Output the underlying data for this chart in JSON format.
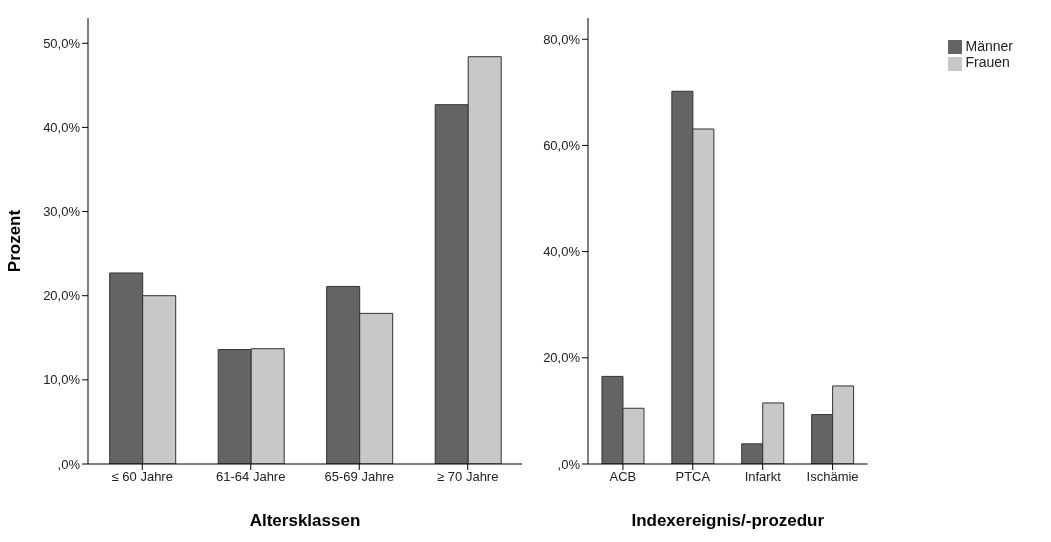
{
  "chart_data": [
    {
      "type": "bar",
      "xlabel": "Altersklassen",
      "ylabel": "Prozent",
      "categories": [
        "≤ 60 Jahre",
        "61-64 Jahre",
        "65-69 Jahre",
        "≥ 70 Jahre"
      ],
      "series": [
        {
          "color": "#646464",
          "values": [
            22.7,
            13.6,
            21.1,
            42.7
          ]
        },
        {
          "color": "#c8c8c8",
          "values": [
            20.0,
            13.7,
            17.9,
            48.4
          ]
        }
      ],
      "ylim": [
        0,
        53
      ],
      "yticks": [
        {
          "value": 0,
          "label": ",0%"
        },
        {
          "value": 10,
          "label": "10,0%"
        },
        {
          "value": 20,
          "label": "20,0%"
        },
        {
          "value": 30,
          "label": "30,0%"
        },
        {
          "value": 40,
          "label": "40,0%"
        },
        {
          "value": 50,
          "label": "50,0%"
        }
      ],
      "grid": false,
      "legend": false
    },
    {
      "type": "bar",
      "xlabel": "Indexereignis/-prozedur",
      "categories": [
        "ACB",
        "PTCA",
        "Infarkt",
        "Ischämie"
      ],
      "series": [
        {
          "name": "Männer",
          "color": "#646464",
          "values": [
            16.5,
            70.2,
            3.8,
            9.3
          ]
        },
        {
          "name": "Frauen",
          "color": "#c8c8c8",
          "values": [
            10.5,
            63.1,
            11.5,
            14.7
          ]
        }
      ],
      "ylim": [
        0,
        84
      ],
      "yticks": [
        {
          "value": 0,
          "label": ",0%"
        },
        {
          "value": 20,
          "label": "20,0%"
        },
        {
          "value": 40,
          "label": "40,0%"
        },
        {
          "value": 60,
          "label": "60,0%"
        },
        {
          "value": 80,
          "label": "80,0%"
        }
      ],
      "grid": false,
      "legend": "top right"
    }
  ]
}
